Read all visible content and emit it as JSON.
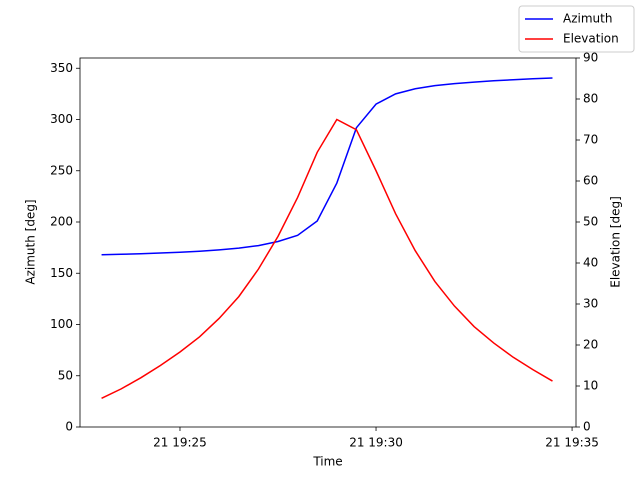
{
  "chart_data": {
    "type": "line",
    "xlabel": "Time",
    "ylabel": "Azimuth [deg]",
    "y2label": "Elevation [deg]",
    "x": [
      "21 19:23:00",
      "21 19:23:30",
      "21 19:24:00",
      "21 19:24:30",
      "21 19:25:00",
      "21 19:25:30",
      "21 19:26:00",
      "21 19:26:30",
      "21 19:27:00",
      "21 19:27:30",
      "21 19:28:00",
      "21 19:28:30",
      "21 19:29:00",
      "21 19:29:30",
      "21 19:30:00",
      "21 19:30:30",
      "21 19:31:00",
      "21 19:31:30",
      "21 19:32:00",
      "21 19:32:30",
      "21 19:33:00",
      "21 19:33:30",
      "21 19:34:00",
      "21 19:34:30"
    ],
    "series": [
      {
        "name": "Azimuth",
        "color": "#0000ff",
        "values": [
          168,
          168.5,
          169,
          169.7,
          170.5,
          171.5,
          172.8,
          174.5,
          177,
          181,
          187,
          201,
          238,
          292,
          315,
          325,
          330,
          333,
          335,
          336.5,
          337.8,
          338.8,
          339.7,
          340.5
        ]
      },
      {
        "name": "Elevation",
        "color": "#ff0000",
        "axis": "y2",
        "values": [
          7,
          9.3,
          12,
          15,
          18.3,
          22,
          26.5,
          31.8,
          38.5,
          46.5,
          56,
          67,
          75,
          72.5,
          62.5,
          52,
          43,
          35.5,
          29.5,
          24.5,
          20.5,
          17,
          14,
          11.2
        ]
      }
    ],
    "xlim": [
      "21 19:22:27",
      "21 19:35:06"
    ],
    "xticks": [
      "21 19:25",
      "21 19:30",
      "21 19:35"
    ],
    "ylim": [
      0,
      360
    ],
    "yticks": [
      0,
      50,
      100,
      150,
      200,
      250,
      300,
      350
    ],
    "y2lim": [
      0,
      90
    ],
    "y2ticks": [
      0,
      10,
      20,
      30,
      40,
      50,
      60,
      70,
      80,
      90
    ],
    "legend": "upper right"
  }
}
